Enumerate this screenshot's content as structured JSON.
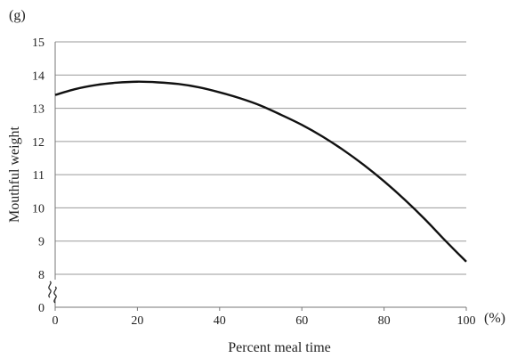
{
  "chart_data": {
    "type": "line",
    "xlabel": "Percent meal time",
    "ylabel": "Mouthful weight",
    "x_unit": "(%)",
    "y_unit": "(g)",
    "xlim": [
      0,
      100
    ],
    "ylim_lower_segment": [
      0,
      8
    ],
    "ylim_upper_segment": [
      8,
      15
    ],
    "axis_break": "y between 0 and 8",
    "grid": "horizontal",
    "x_ticks": [
      "0",
      "20",
      "40",
      "60",
      "80",
      "100"
    ],
    "y_ticks": [
      "0",
      "8",
      "9",
      "10",
      "11",
      "12",
      "13",
      "14",
      "15"
    ],
    "series": [
      {
        "x": [
          0,
          5,
          10,
          15,
          20,
          25,
          30,
          35,
          40,
          45,
          50,
          55,
          60,
          65,
          70,
          75,
          80,
          85,
          90,
          95,
          100
        ],
        "values": [
          13.4,
          13.58,
          13.7,
          13.77,
          13.8,
          13.78,
          13.73,
          13.63,
          13.48,
          13.3,
          13.08,
          12.8,
          12.5,
          12.15,
          11.75,
          11.3,
          10.8,
          10.25,
          9.65,
          9.0,
          8.38
        ]
      }
    ]
  }
}
